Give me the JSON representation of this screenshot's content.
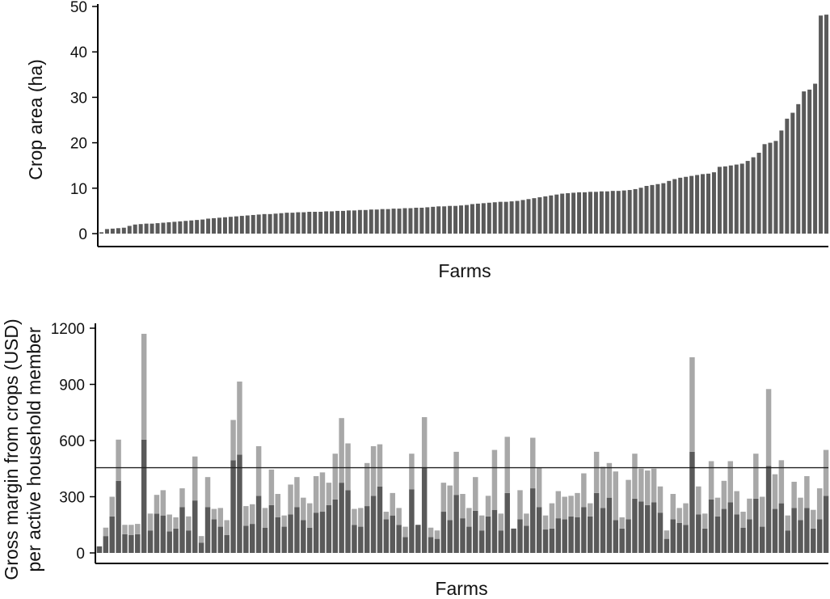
{
  "colors": {
    "dark": "#5a5a5a",
    "light": "#a8a8a8",
    "axis": "#000000"
  },
  "chart_data": [
    {
      "type": "bar",
      "ylabel": "Crop area (ha)",
      "xlabel": "Farms",
      "ylim": [
        0,
        50
      ],
      "yticks": [
        0,
        10,
        20,
        30,
        40,
        50
      ],
      "grid": false,
      "values": [
        0.3,
        1.0,
        1.1,
        1.2,
        1.3,
        1.7,
        2.0,
        2.1,
        2.2,
        2.2,
        2.3,
        2.4,
        2.5,
        2.6,
        2.7,
        2.8,
        2.9,
        3.0,
        3.1,
        3.3,
        3.4,
        3.5,
        3.6,
        3.7,
        3.8,
        3.9,
        4.0,
        4.1,
        4.2,
        4.3,
        4.3,
        4.4,
        4.5,
        4.6,
        4.6,
        4.7,
        4.7,
        4.8,
        4.8,
        4.8,
        4.9,
        4.9,
        5.0,
        5.0,
        5.1,
        5.1,
        5.2,
        5.2,
        5.3,
        5.3,
        5.4,
        5.4,
        5.5,
        5.5,
        5.6,
        5.6,
        5.7,
        5.7,
        5.8,
        5.9,
        6.0,
        6.0,
        6.1,
        6.1,
        6.2,
        6.3,
        6.5,
        6.6,
        6.7,
        6.8,
        6.9,
        7.0,
        7.0,
        7.1,
        7.2,
        7.4,
        7.6,
        7.8,
        8.0,
        8.2,
        8.4,
        8.6,
        8.8,
        8.9,
        9.0,
        9.1,
        9.1,
        9.2,
        9.2,
        9.3,
        9.3,
        9.4,
        9.4,
        9.5,
        9.6,
        9.8,
        10.1,
        10.5,
        10.7,
        10.9,
        11.1,
        11.6,
        12.0,
        12.3,
        12.5,
        12.7,
        12.9,
        13.1,
        13.2,
        13.5,
        14.7,
        14.8,
        15.0,
        15.2,
        15.4,
        16.0,
        16.8,
        17.8,
        19.7,
        20.0,
        20.4,
        22.7,
        25.3,
        26.6,
        28.5,
        31.3,
        31.7,
        33.0,
        48.0,
        48.2
      ]
    },
    {
      "type": "bar",
      "stacked": true,
      "ylabel_line1": "Gross margin from crops (USD)",
      "ylabel_line2": "per active household member",
      "xlabel": "Farms",
      "ylim": [
        0,
        1250
      ],
      "yticks": [
        0,
        300,
        600,
        900,
        1200
      ],
      "reference_line": 455,
      "grid": false,
      "series": [
        {
          "color": "#5a5a5a",
          "values": [
            35,
            90,
            195,
            385,
            100,
            95,
            100,
            605,
            120,
            210,
            200,
            115,
            130,
            245,
            120,
            280,
            55,
            245,
            180,
            140,
            95,
            495,
            525,
            145,
            155,
            305,
            135,
            255,
            190,
            140,
            205,
            245,
            175,
            135,
            215,
            220,
            255,
            285,
            375,
            335,
            150,
            140,
            250,
            305,
            355,
            180,
            200,
            150,
            85,
            340,
            150,
            455,
            85,
            75,
            220,
            175,
            310,
            185,
            140,
            225,
            120,
            195,
            230,
            120,
            320,
            130,
            180,
            145,
            345,
            245,
            125,
            130,
            185,
            180,
            195,
            190,
            245,
            195,
            320,
            240,
            295,
            175,
            130,
            180,
            290,
            275,
            255,
            270,
            215,
            75,
            180,
            160,
            150,
            540,
            205,
            130,
            285,
            195,
            235,
            270,
            205,
            135,
            180,
            290,
            140,
            465,
            235,
            265,
            120,
            240,
            175,
            240,
            130,
            180,
            305
          ]
        },
        {
          "color": "#a8a8a8",
          "values": [
            0,
            45,
            105,
            220,
            50,
            55,
            55,
            565,
            90,
            100,
            135,
            90,
            60,
            100,
            75,
            235,
            35,
            160,
            55,
            100,
            80,
            215,
            390,
            105,
            105,
            265,
            105,
            190,
            125,
            60,
            160,
            160,
            120,
            130,
            195,
            210,
            120,
            245,
            345,
            250,
            85,
            100,
            230,
            265,
            225,
            40,
            120,
            90,
            55,
            190,
            0,
            270,
            50,
            45,
            155,
            185,
            230,
            130,
            100,
            180,
            80,
            110,
            320,
            90,
            300,
            0,
            155,
            65,
            270,
            210,
            75,
            135,
            145,
            120,
            110,
            130,
            180,
            70,
            220,
            220,
            185,
            260,
            60,
            210,
            240,
            175,
            185,
            180,
            140,
            45,
            135,
            80,
            115,
            505,
            150,
            80,
            205,
            100,
            150,
            220,
            125,
            85,
            110,
            240,
            160,
            410,
            185,
            230,
            80,
            140,
            120,
            170,
            100,
            165,
            245
          ]
        }
      ]
    }
  ]
}
